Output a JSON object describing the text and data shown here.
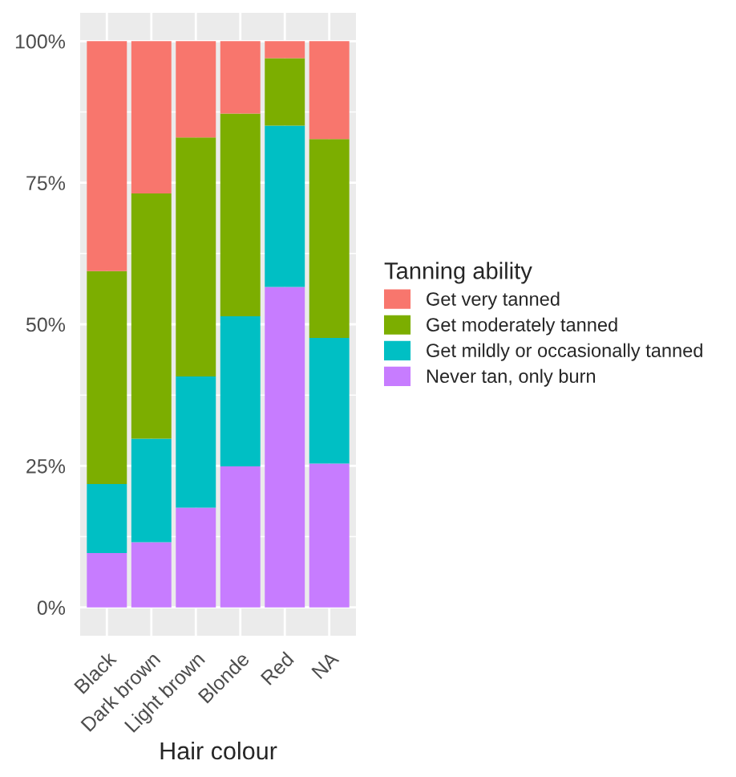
{
  "chart_data": {
    "type": "bar",
    "stacked": true,
    "xlabel": "Hair colour",
    "legend_title": "Tanning ability",
    "legend": "right",
    "categories": [
      "Black",
      "Dark brown",
      "Light brown",
      "Blonde",
      "Red",
      "NA"
    ],
    "series": [
      {
        "name": "Never tan, only burn",
        "color": "#c77cff",
        "values": [
          9.6,
          11.5,
          17.6,
          24.9,
          56.6,
          25.4
        ]
      },
      {
        "name": "Get mildly or occasionally tanned",
        "color": "#00bfc4",
        "values": [
          12.2,
          18.3,
          23.2,
          26.5,
          28.5,
          22.2
        ]
      },
      {
        "name": "Get moderately tanned",
        "color": "#7cae00",
        "values": [
          37.6,
          43.3,
          42.2,
          35.8,
          11.9,
          35.1
        ]
      },
      {
        "name": "Get very tanned",
        "color": "#f8766d",
        "values": [
          40.6,
          26.9,
          17.0,
          12.8,
          3.0,
          17.3
        ]
      }
    ],
    "ylim": [
      -5,
      105
    ],
    "yticks": [
      {
        "value": 0,
        "label": "0%"
      },
      {
        "value": 25,
        "label": "25%"
      },
      {
        "value": 50,
        "label": "50%"
      },
      {
        "value": 75,
        "label": "75%"
      },
      {
        "value": 100,
        "label": "100%"
      }
    ],
    "grid": true
  }
}
